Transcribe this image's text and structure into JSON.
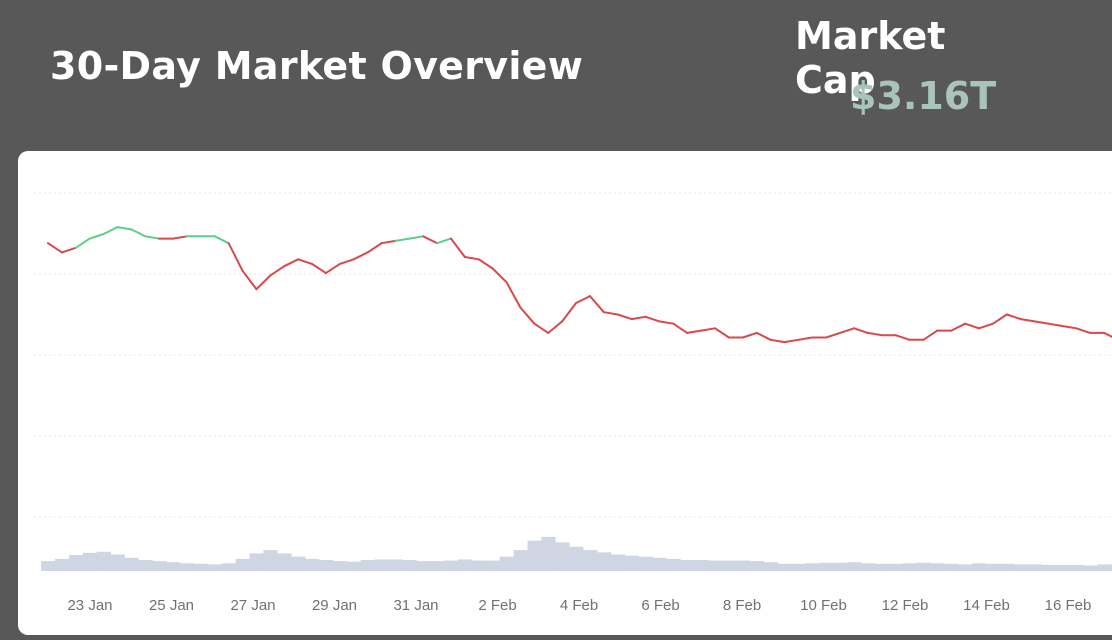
{
  "header": {
    "title": "30-Day Market Overview",
    "market_cap_label": "Market Cap",
    "market_cap_value": "$3.16T"
  },
  "colors": {
    "up": "#5ccf8a",
    "down": "#d9484b",
    "volume": "#cfd5e2",
    "grid": "#e6e6e6",
    "cap_value": "#a9c4ba"
  },
  "chart_data": {
    "type": "line",
    "x_ticks": [
      "23 Jan",
      "25 Jan",
      "27 Jan",
      "29 Jan",
      "31 Jan",
      "2 Feb",
      "4 Feb",
      "6 Feb",
      "8 Feb",
      "10 Feb",
      "12 Feb",
      "14 Feb",
      "16 Feb"
    ],
    "x": [
      "22 Jan",
      "22 Jan",
      "23 Jan",
      "23 Jan",
      "23 Jan",
      "24 Jan",
      "24 Jan",
      "24 Jan",
      "24 Jan",
      "25 Jan",
      "25 Jan",
      "25 Jan",
      "26 Jan",
      "26 Jan",
      "26 Jan",
      "26 Jan",
      "27 Jan",
      "27 Jan",
      "27 Jan",
      "28 Jan",
      "28 Jan",
      "28 Jan",
      "29 Jan",
      "29 Jan",
      "29 Jan",
      "30 Jan",
      "30 Jan",
      "30 Jan",
      "31 Jan",
      "31 Jan",
      "31 Jan",
      "31 Jan",
      "1 Feb",
      "1 Feb",
      "2 Feb",
      "2 Feb",
      "2 Feb",
      "2 Feb",
      "2 Feb",
      "3 Feb",
      "3 Feb",
      "3 Feb",
      "4 Feb",
      "4 Feb",
      "4 Feb",
      "5 Feb",
      "5 Feb",
      "5 Feb",
      "6 Feb",
      "6 Feb",
      "7 Feb",
      "7 Feb",
      "7 Feb",
      "8 Feb",
      "8 Feb",
      "8 Feb",
      "9 Feb",
      "9 Feb",
      "10 Feb",
      "10 Feb",
      "10 Feb",
      "11 Feb",
      "11 Feb",
      "11 Feb",
      "12 Feb",
      "12 Feb",
      "13 Feb",
      "13 Feb",
      "13 Feb",
      "14 Feb",
      "14 Feb",
      "15 Feb",
      "15 Feb",
      "16 Feb",
      "16 Feb",
      "16 Feb",
      "17 Feb",
      "17 Feb"
    ],
    "y": [
      0.86,
      0.82,
      0.84,
      0.88,
      0.9,
      0.93,
      0.92,
      0.89,
      0.88,
      0.88,
      0.89,
      0.89,
      0.89,
      0.86,
      0.74,
      0.66,
      0.72,
      0.76,
      0.79,
      0.77,
      0.73,
      0.77,
      0.79,
      0.82,
      0.86,
      0.87,
      0.88,
      0.89,
      0.86,
      0.88,
      0.8,
      0.79,
      0.75,
      0.69,
      0.58,
      0.51,
      0.47,
      0.52,
      0.6,
      0.63,
      0.56,
      0.55,
      0.53,
      0.54,
      0.52,
      0.51,
      0.47,
      0.48,
      0.49,
      0.45,
      0.45,
      0.47,
      0.44,
      0.43,
      0.44,
      0.45,
      0.45,
      0.47,
      0.49,
      0.47,
      0.46,
      0.46,
      0.44,
      0.44,
      0.48,
      0.48,
      0.51,
      0.49,
      0.51,
      0.55,
      0.53,
      0.52,
      0.51,
      0.5,
      0.49,
      0.47,
      0.47,
      0.44
    ],
    "trend": [
      "down",
      "down",
      "up",
      "up",
      "up",
      "up",
      "up",
      "up",
      "down",
      "down",
      "up",
      "up",
      "up",
      "down",
      "down",
      "down",
      "down",
      "down",
      "down",
      "down",
      "down",
      "down",
      "down",
      "down",
      "down",
      "up",
      "up",
      "down",
      "up",
      "down",
      "down",
      "down",
      "down",
      "down",
      "down",
      "down",
      "down",
      "down",
      "down",
      "down",
      "down",
      "down",
      "down",
      "down",
      "down",
      "down",
      "down",
      "down",
      "down",
      "down",
      "down",
      "down",
      "down",
      "down",
      "down",
      "down",
      "down",
      "down",
      "down",
      "down",
      "down",
      "down",
      "down",
      "down",
      "down",
      "down",
      "down",
      "down",
      "down",
      "down",
      "down",
      "down",
      "down",
      "down",
      "down",
      "down",
      "down",
      "down"
    ],
    "volume": [
      0.18,
      0.22,
      0.29,
      0.33,
      0.35,
      0.3,
      0.24,
      0.2,
      0.18,
      0.16,
      0.14,
      0.13,
      0.12,
      0.14,
      0.22,
      0.32,
      0.38,
      0.32,
      0.26,
      0.22,
      0.2,
      0.18,
      0.17,
      0.2,
      0.21,
      0.21,
      0.2,
      0.18,
      0.18,
      0.19,
      0.21,
      0.19,
      0.19,
      0.26,
      0.38,
      0.55,
      0.62,
      0.52,
      0.44,
      0.38,
      0.34,
      0.3,
      0.28,
      0.26,
      0.24,
      0.22,
      0.2,
      0.2,
      0.19,
      0.19,
      0.19,
      0.18,
      0.16,
      0.13,
      0.13,
      0.14,
      0.15,
      0.15,
      0.16,
      0.14,
      0.13,
      0.13,
      0.14,
      0.15,
      0.14,
      0.13,
      0.12,
      0.14,
      0.13,
      0.13,
      0.12,
      0.12,
      0.11,
      0.11,
      0.11,
      0.1,
      0.12,
      0.12
    ],
    "ylim": [
      0,
      1
    ],
    "grid": true
  }
}
